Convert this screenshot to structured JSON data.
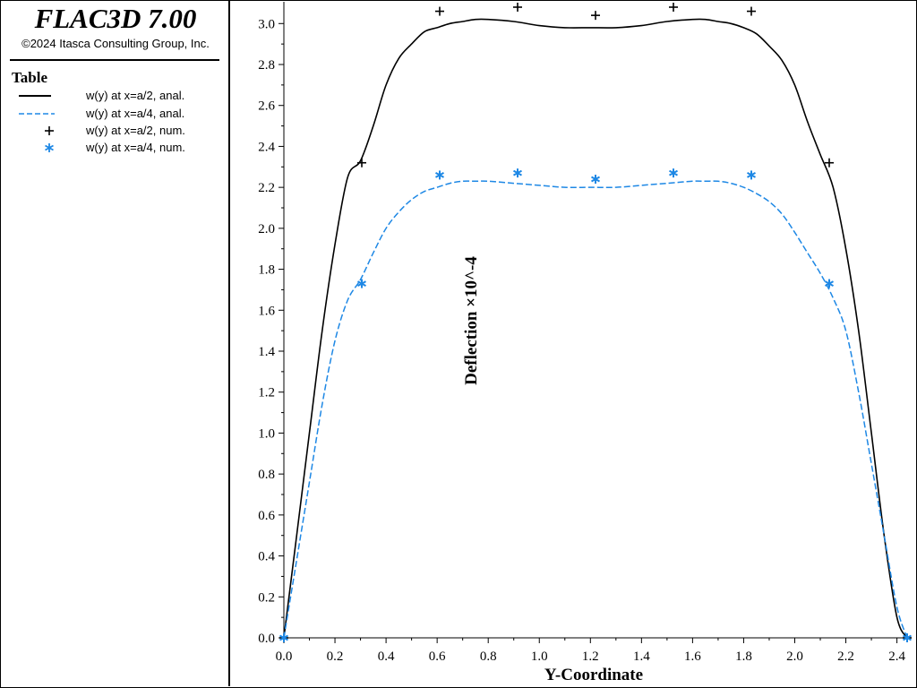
{
  "app": {
    "title": "FLAC3D 7.00",
    "copyright": "©2024 Itasca Consulting Group, Inc."
  },
  "legend": {
    "heading": "Table",
    "items": [
      {
        "label": "w(y) at x=a/2, anal.",
        "style": "solid-line",
        "color": "#000000"
      },
      {
        "label": "w(y) at x=a/4, anal.",
        "style": "dashed-line",
        "color": "#1e88e5"
      },
      {
        "label": "w(y) at x=a/2, num.",
        "style": "plus-marker",
        "color": "#000000"
      },
      {
        "label": "w(y) at x=a/4, num.",
        "style": "star-marker",
        "color": "#1e88e5"
      }
    ]
  },
  "chart_data": {
    "type": "line",
    "title": "",
    "xlabel": "Y-Coordinate",
    "ylabel": "Deflection ×10^-4",
    "xlim": [
      0,
      2.44
    ],
    "ylim": [
      0,
      3.0
    ],
    "xticks": [
      "0.0",
      "0.2",
      "0.4",
      "0.6",
      "0.8",
      "1.0",
      "1.2",
      "1.4",
      "1.6",
      "1.8",
      "2.0",
      "2.2",
      "2.4"
    ],
    "yticks": [
      "0.0",
      "0.2",
      "0.4",
      "0.6",
      "0.8",
      "1.0",
      "1.2",
      "1.4",
      "1.6",
      "1.8",
      "2.0",
      "2.2",
      "2.4",
      "2.6",
      "2.8",
      "3.0"
    ],
    "grid": false,
    "series": [
      {
        "name": "w(y) at x=a/2, anal.",
        "color": "#000000",
        "style": "solid",
        "x": [
          0.0,
          0.05,
          0.1,
          0.15,
          0.2,
          0.25,
          0.3,
          0.35,
          0.4,
          0.45,
          0.5,
          0.55,
          0.6,
          0.65,
          0.7,
          0.75,
          0.8,
          0.9,
          1.0,
          1.1,
          1.2,
          1.3,
          1.4,
          1.5,
          1.6,
          1.65,
          1.7,
          1.75,
          1.8,
          1.85,
          1.9,
          1.95,
          2.0,
          2.05,
          2.1,
          2.15,
          2.2,
          2.25,
          2.3,
          2.35,
          2.4,
          2.44
        ],
        "values": [
          0.0,
          0.5,
          1.0,
          1.5,
          1.92,
          2.25,
          2.33,
          2.5,
          2.7,
          2.83,
          2.9,
          2.96,
          2.98,
          3.0,
          3.01,
          3.02,
          3.02,
          3.01,
          2.99,
          2.98,
          2.98,
          2.98,
          2.99,
          3.01,
          3.02,
          3.02,
          3.01,
          3.0,
          2.98,
          2.95,
          2.89,
          2.82,
          2.7,
          2.52,
          2.36,
          2.2,
          1.9,
          1.5,
          1.0,
          0.5,
          0.1,
          0.0
        ]
      },
      {
        "name": "w(y) at x=a/4, anal.",
        "color": "#1e88e5",
        "style": "dashed",
        "x": [
          0.0,
          0.05,
          0.1,
          0.15,
          0.2,
          0.25,
          0.3,
          0.35,
          0.4,
          0.45,
          0.5,
          0.55,
          0.6,
          0.65,
          0.7,
          0.75,
          0.8,
          0.9,
          1.0,
          1.1,
          1.2,
          1.3,
          1.4,
          1.5,
          1.6,
          1.65,
          1.7,
          1.75,
          1.8,
          1.85,
          1.9,
          1.95,
          2.0,
          2.05,
          2.1,
          2.15,
          2.2,
          2.25,
          2.3,
          2.35,
          2.4,
          2.44
        ],
        "values": [
          0.0,
          0.38,
          0.76,
          1.14,
          1.45,
          1.65,
          1.75,
          1.88,
          2.0,
          2.08,
          2.14,
          2.18,
          2.2,
          2.22,
          2.23,
          2.23,
          2.23,
          2.22,
          2.21,
          2.2,
          2.2,
          2.2,
          2.21,
          2.22,
          2.23,
          2.23,
          2.23,
          2.22,
          2.2,
          2.17,
          2.13,
          2.07,
          1.98,
          1.88,
          1.78,
          1.66,
          1.5,
          1.2,
          0.85,
          0.5,
          0.15,
          0.0
        ]
      },
      {
        "name": "w(y) at x=a/2, num.",
        "color": "#000000",
        "marker": "plus",
        "x": [
          0.0,
          0.305,
          0.61,
          0.915,
          1.22,
          1.525,
          1.83,
          2.135,
          2.44
        ],
        "values": [
          0.0,
          2.32,
          3.06,
          3.08,
          3.04,
          3.08,
          3.06,
          2.32,
          0.0
        ]
      },
      {
        "name": "w(y) at x=a/4, num.",
        "color": "#1e88e5",
        "marker": "star",
        "x": [
          0.0,
          0.305,
          0.61,
          0.915,
          1.22,
          1.525,
          1.83,
          2.135,
          2.44
        ],
        "values": [
          0.0,
          1.73,
          2.26,
          2.27,
          2.24,
          2.27,
          2.26,
          1.73,
          0.0
        ]
      }
    ]
  }
}
